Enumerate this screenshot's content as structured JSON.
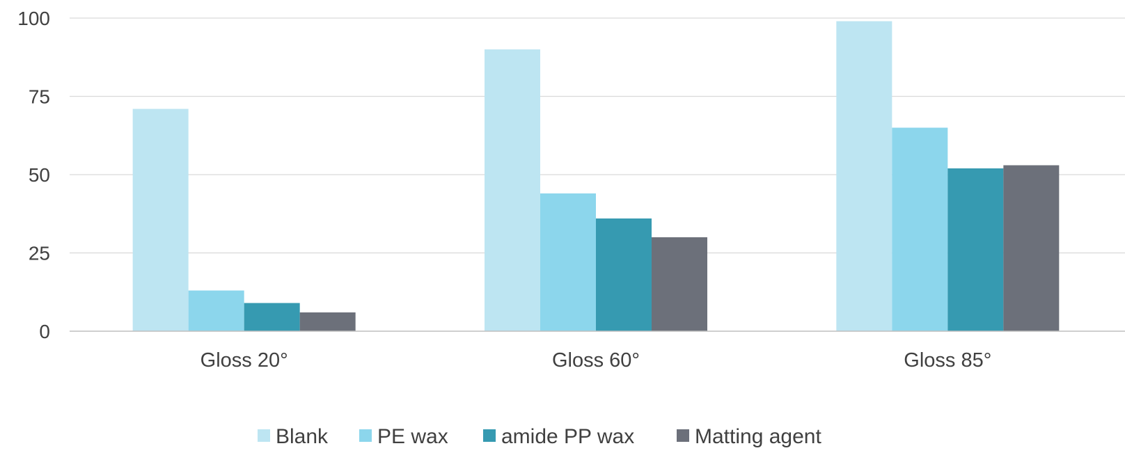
{
  "chart_data": {
    "type": "bar",
    "title": "",
    "xlabel": "",
    "ylabel": "",
    "categories": [
      "Gloss 20°",
      "Gloss 60°",
      "Gloss 85°"
    ],
    "series": [
      {
        "name": "Blank",
        "color": "#bde5f2",
        "values": [
          71,
          90,
          99
        ]
      },
      {
        "name": "PE wax",
        "color": "#8cd6ec",
        "values": [
          13,
          44,
          65
        ]
      },
      {
        "name": "amide PP wax",
        "color": "#369ab1",
        "values": [
          9,
          36,
          52
        ]
      },
      {
        "name": "Matting agent",
        "color": "#6c707a",
        "values": [
          6,
          30,
          53
        ]
      }
    ],
    "ylim": [
      0,
      100
    ],
    "yticks": [
      0,
      25,
      50,
      75,
      100
    ],
    "grid": true,
    "legend_position": "bottom"
  }
}
